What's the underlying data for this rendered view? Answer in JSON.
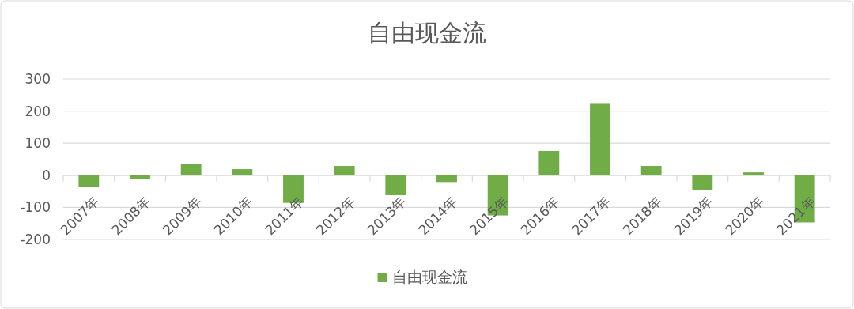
{
  "chart_data": {
    "type": "bar",
    "title": "自由现金流",
    "categories": [
      "2007年",
      "2008年",
      "2009年",
      "2010年",
      "2011年",
      "2012年",
      "2013年",
      "2014年",
      "2015年",
      "2016年",
      "2017年",
      "2018年",
      "2019年",
      "2020年",
      "2021年"
    ],
    "series": [
      {
        "name": "自由现金流",
        "color": "#70ad47",
        "values": [
          -36,
          -12,
          36,
          19,
          -86,
          29,
          -62,
          -21,
          -125,
          76,
          225,
          29,
          -45,
          9,
          -147
        ]
      }
    ],
    "ylim": [
      -200,
      300
    ],
    "yticks": [
      -200,
      -100,
      0,
      100,
      200,
      300
    ],
    "grid": "y",
    "legend": "bottom"
  }
}
